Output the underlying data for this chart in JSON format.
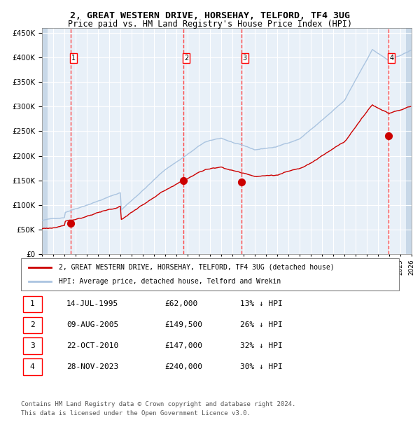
{
  "title1": "2, GREAT WESTERN DRIVE, HORSEHAY, TELFORD, TF4 3UG",
  "title2": "Price paid vs. HM Land Registry's House Price Index (HPI)",
  "legend_line1": "2, GREAT WESTERN DRIVE, HORSEHAY, TELFORD, TF4 3UG (detached house)",
  "legend_line2": "HPI: Average price, detached house, Telford and Wrekin",
  "footer1": "Contains HM Land Registry data © Crown copyright and database right 2024.",
  "footer2": "This data is licensed under the Open Government Licence v3.0.",
  "sale_dates": [
    "1995-07-14",
    "2005-08-09",
    "2010-10-22",
    "2023-11-28"
  ],
  "sale_prices": [
    62000,
    149500,
    147000,
    240000
  ],
  "sale_labels": [
    "1",
    "2",
    "3",
    "4"
  ],
  "sale_table": [
    [
      "1",
      "14-JUL-1995",
      "£62,000",
      "13% ↓ HPI"
    ],
    [
      "2",
      "09-AUG-2005",
      "£149,500",
      "26% ↓ HPI"
    ],
    [
      "3",
      "22-OCT-2010",
      "£147,000",
      "32% ↓ HPI"
    ],
    [
      "4",
      "28-NOV-2023",
      "£240,000",
      "30% ↓ HPI"
    ]
  ],
  "hpi_color": "#aac4e0",
  "price_color": "#cc0000",
  "vline_color": "#ff4444",
  "bg_color": "#ddeeff",
  "plot_bg": "#e8f0f8",
  "grid_color": "#ffffff",
  "hatch_color": "#c8d8e8",
  "ylim": [
    0,
    460000
  ],
  "yticks": [
    0,
    50000,
    100000,
    150000,
    200000,
    250000,
    300000,
    350000,
    400000,
    450000
  ]
}
